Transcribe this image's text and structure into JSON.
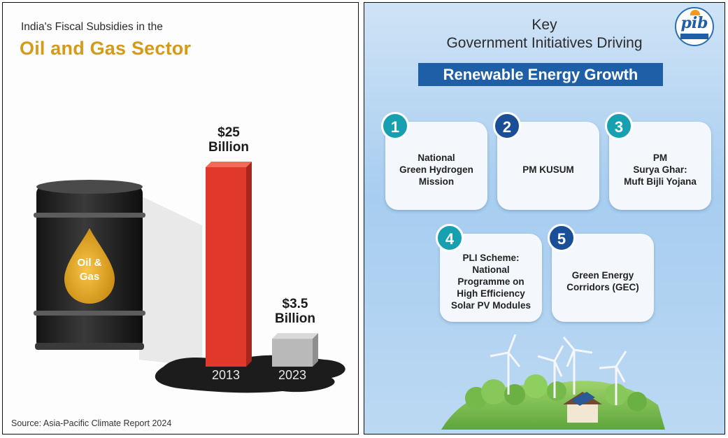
{
  "left_panel": {
    "subtitle": "India's Fiscal Subsidies in the",
    "title": "Oil and Gas Sector",
    "barrel_label_line1": "Oil &",
    "barrel_label_line2": "Gas",
    "source": "Source: Asia-Pacific Climate Report 2024",
    "colors": {
      "title": "#d59a17",
      "bar_2013": "#e0392b",
      "bar_2023": "#b9b9b9",
      "barrel": "#2a2a2a"
    }
  },
  "chart_data": {
    "type": "bar",
    "title": "Oil and Gas Sector",
    "subtitle": "India's Fiscal Subsidies in the",
    "categories": [
      "2013",
      "2023"
    ],
    "values": [
      25,
      3.5
    ],
    "unit": "Billion USD",
    "data_labels": [
      {
        "line1": "$25",
        "line2": "Billion"
      },
      {
        "line1": "$3.5",
        "line2": "Billion"
      }
    ],
    "ylim": [
      0,
      25
    ],
    "grid": false,
    "xlabel": "",
    "ylabel": ""
  },
  "right_panel": {
    "heading_line1": "Key",
    "heading_line2": "Government Initiatives Driving",
    "banner": "Renewable Energy Growth",
    "logo": "pib",
    "initiatives": [
      {
        "number": "1",
        "lines": [
          "National",
          "Green Hydrogen",
          "Mission"
        ],
        "color": "#16a0b0"
      },
      {
        "number": "2",
        "lines": [
          "PM KUSUM"
        ],
        "color": "#1a4f98"
      },
      {
        "number": "3",
        "lines": [
          "PM",
          "Surya Ghar:",
          "Muft Bijli Yojana"
        ],
        "color": "#16a0b0"
      },
      {
        "number": "4",
        "lines": [
          "PLI Scheme:",
          "National",
          "Programme on",
          "High Efficiency",
          "Solar PV Modules"
        ],
        "color": "#16a0b0"
      },
      {
        "number": "5",
        "lines": [
          "Green Energy",
          "Corridors (GEC)"
        ],
        "color": "#1a4f98"
      }
    ]
  }
}
